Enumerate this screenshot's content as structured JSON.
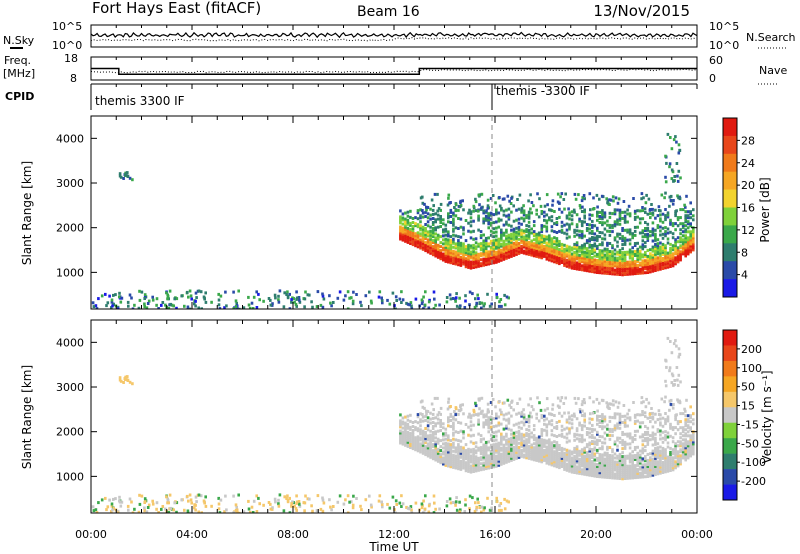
{
  "header": {
    "title": "Fort Hays East (fitACF)",
    "beam": "Beam 16",
    "date": "13/Nov/2015"
  },
  "top_panels": {
    "nsky_label": "N.Sky",
    "nsky_ticks": [
      "10^5",
      "10^0"
    ],
    "nsearch_label": "N.Search",
    "nsearch_ticks": [
      "10^5",
      "10^0"
    ],
    "freq_label": "Freq.",
    "freq_unit": "[MHz]",
    "freq_ticks": [
      "18",
      "8"
    ],
    "nave_label": "Nave",
    "nave_ticks": [
      "60",
      "0"
    ],
    "cpid_label": "CPID",
    "cpid_segments": [
      {
        "label": "themis 3300 IF",
        "start_hour": 0,
        "end_hour": 16
      },
      {
        "label": "themis -3300 IF",
        "start_hour": 16,
        "end_hour": 24
      }
    ],
    "freq_steps": [
      {
        "start_hour": 0,
        "end_hour": 1.1,
        "mhz": 13
      },
      {
        "start_hour": 1.1,
        "end_hour": 13.0,
        "mhz": 10.5
      },
      {
        "start_hour": 13.0,
        "end_hour": 24,
        "mhz": 13
      }
    ]
  },
  "panel_power": {
    "ylabel": "Slant Range [km]",
    "yticks": [
      "4000",
      "3000",
      "2000",
      "1000"
    ],
    "colorbar_label": "Power [dB]",
    "colorbar_ticks": [
      "28",
      "24",
      "20",
      "16",
      "12",
      "8",
      "4"
    ],
    "colorbar_colors": [
      "#1a1ae6",
      "#2a4aa8",
      "#2e7d6e",
      "#3aa84a",
      "#7fd13a",
      "#f2d32e",
      "#f5a623",
      "#f07a1a",
      "#e8461a",
      "#e01a10"
    ]
  },
  "panel_velocity": {
    "ylabel": "Slant Range [km]",
    "yticks": [
      "4000",
      "3000",
      "2000",
      "1000"
    ],
    "colorbar_label": "Velocity [m s⁻¹]",
    "colorbar_ticks": [
      "200",
      "100",
      "50",
      "15",
      "-15",
      "-50",
      "-100",
      "-200"
    ],
    "colorbar_colors": [
      "#1a1ae6",
      "#2a4aa8",
      "#2e7d6e",
      "#3aa84a",
      "#7fd13a",
      "#c8c8c8",
      "#f5c76a",
      "#f5a623",
      "#f07a1a",
      "#e8461a",
      "#e01a10"
    ]
  },
  "x_axis": {
    "label": "Time UT",
    "ticks": [
      "00:00",
      "04:00",
      "08:00",
      "12:00",
      "16:00",
      "20:00",
      "00:00"
    ]
  },
  "chart_data": {
    "type": "heatmap",
    "title": "Fort Hays East (fitACF)",
    "xlabel": "Time UT",
    "ylabel": "Slant Range [km]",
    "xlim_hours": [
      0,
      24
    ],
    "ylim_km": [
      180,
      4500
    ],
    "power_range_db": [
      0,
      30
    ],
    "velocity_range_ms": [
      -250,
      250
    ],
    "features": [
      {
        "name": "main F-region band",
        "hours": [
          12.2,
          23.9
        ],
        "center_km_profile": [
          [
            12.2,
            1900
          ],
          [
            13.0,
            1700
          ],
          [
            14.0,
            1400
          ],
          [
            15.0,
            1250
          ],
          [
            16.0,
            1380
          ],
          [
            17.0,
            1600
          ],
          [
            18.0,
            1450
          ],
          [
            19.0,
            1250
          ],
          [
            20.0,
            1150
          ],
          [
            21.0,
            1100
          ],
          [
            22.0,
            1150
          ],
          [
            23.0,
            1300
          ],
          [
            23.9,
            1700
          ]
        ],
        "peak_power_db": 28
      },
      {
        "name": "upper diffuse echoes",
        "hours": [
          12.5,
          23.9
        ],
        "km": [
          1700,
          2500
        ],
        "power_db": 12
      },
      {
        "name": "near-range ground echoes",
        "hours": [
          0,
          16.5
        ],
        "km": [
          180,
          600
        ],
        "power_db": 8
      },
      {
        "name": "isolated patch",
        "hours": [
          1.1,
          1.6
        ],
        "km": [
          3100,
          3300
        ],
        "power_db": 6
      }
    ]
  }
}
